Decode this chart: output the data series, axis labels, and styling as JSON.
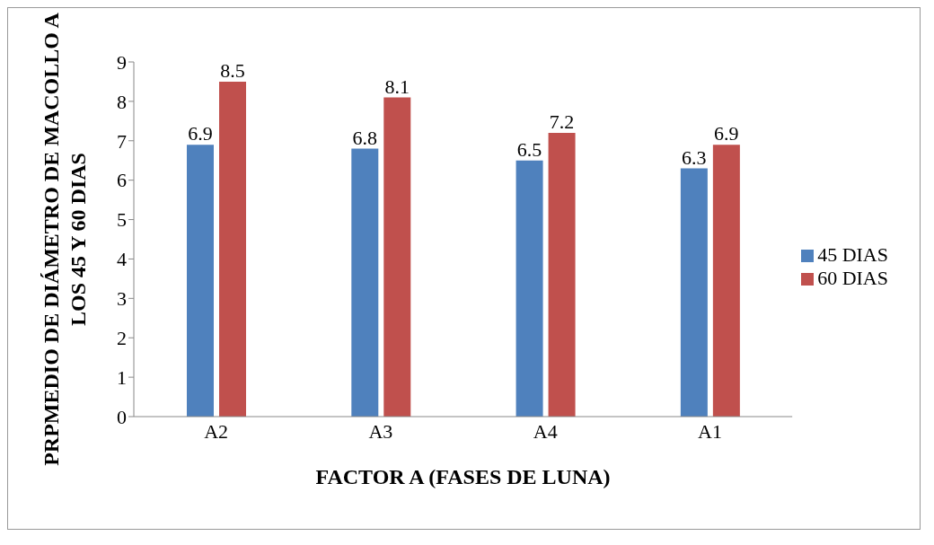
{
  "chart_data": {
    "type": "bar",
    "xlabel": "FACTOR A (FASES DE LUNA)",
    "ylabel": "PRPMEDIO DE DIÁMETRO DE MACOLLO A LOS 45 Y 60 DIAS",
    "categories": [
      "A2",
      "A3",
      "A4",
      "A1"
    ],
    "series": [
      {
        "name": "45 DIAS",
        "color": "#4f81bd",
        "values": [
          6.9,
          6.8,
          6.5,
          6.3
        ]
      },
      {
        "name": "60 DIAS",
        "color": "#c0504d",
        "values": [
          8.5,
          8.1,
          7.2,
          6.9
        ]
      }
    ],
    "ylim": [
      0,
      9
    ],
    "yticks": [
      0,
      1,
      2,
      3,
      4,
      5,
      6,
      7,
      8,
      9
    ],
    "grid": false,
    "legend": "right",
    "data_labels": true
  }
}
